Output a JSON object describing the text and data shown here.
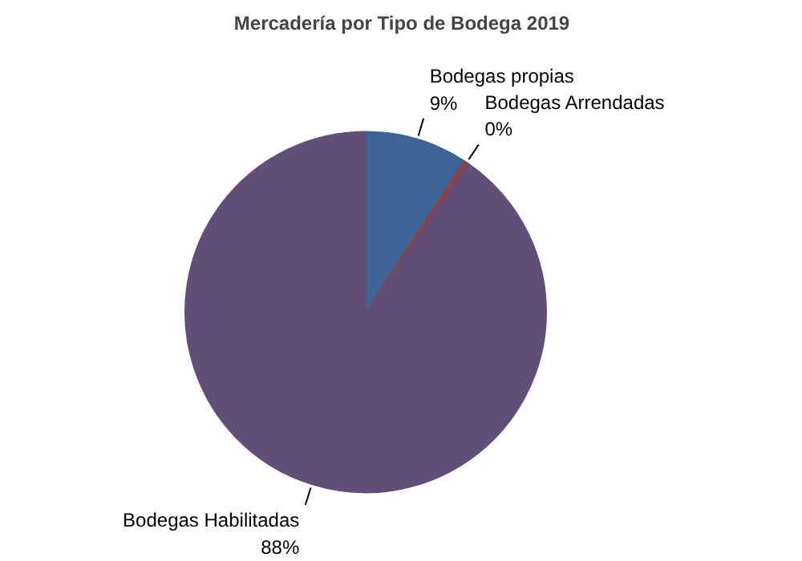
{
  "chart_data": {
    "type": "pie",
    "title": "Mercadería por Tipo de Bodega 2019",
    "categories": [
      "Bodegas propias",
      "Bodegas Arrendadas",
      "Bodegas Habilitadas"
    ],
    "values": [
      9,
      0.4,
      88
    ],
    "value_labels": [
      "9%",
      "0%",
      "88%"
    ],
    "colors": [
      "#3e6496",
      "#94403c",
      "#634e7a"
    ]
  }
}
